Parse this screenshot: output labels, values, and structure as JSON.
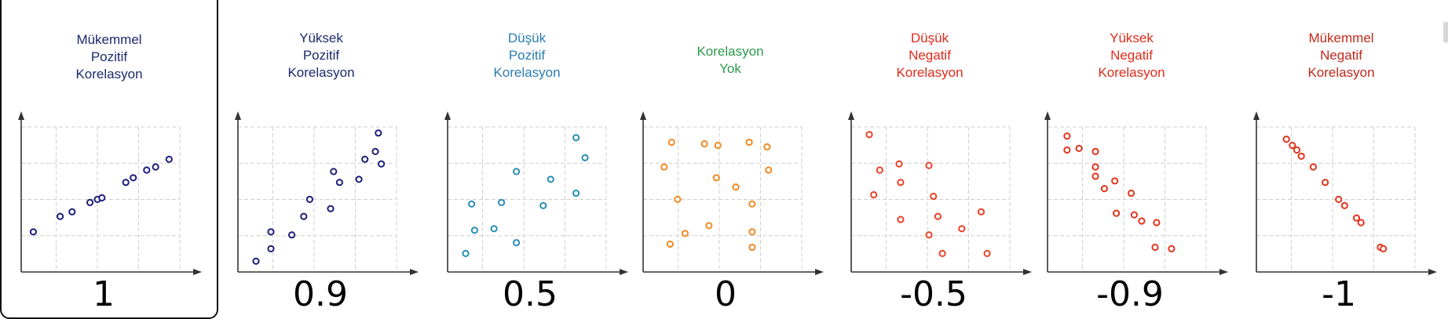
{
  "chart_data": [
    {
      "type": "scatter",
      "title": [
        "Mükemmel",
        "Pozitif",
        "Korelasyon"
      ],
      "coefficient": "1",
      "color": "#1f1f7a",
      "title_color": "#1a2a6c",
      "points": [
        [
          0.06,
          0.26
        ],
        [
          0.24,
          0.36
        ],
        [
          0.32,
          0.39
        ],
        [
          0.44,
          0.45
        ],
        [
          0.49,
          0.47
        ],
        [
          0.52,
          0.48
        ],
        [
          0.68,
          0.58
        ],
        [
          0.73,
          0.61
        ],
        [
          0.82,
          0.66
        ],
        [
          0.88,
          0.68
        ],
        [
          0.97,
          0.73
        ]
      ]
    },
    {
      "type": "scatter",
      "title": [
        "Yüksek",
        "Pozitif",
        "Korelasyon"
      ],
      "coefficient": "0.9",
      "color": "#1f1f7a",
      "title_color": "#1a2a6c",
      "points": [
        [
          0.1,
          0.07
        ],
        [
          0.2,
          0.26
        ],
        [
          0.2,
          0.15
        ],
        [
          0.34,
          0.24
        ],
        [
          0.42,
          0.36
        ],
        [
          0.46,
          0.47
        ],
        [
          0.6,
          0.41
        ],
        [
          0.62,
          0.65
        ],
        [
          0.66,
          0.58
        ],
        [
          0.79,
          0.6
        ],
        [
          0.83,
          0.73
        ],
        [
          0.9,
          0.78
        ],
        [
          0.92,
          0.9
        ],
        [
          0.94,
          0.7
        ]
      ]
    },
    {
      "type": "scatter",
      "title": [
        "Düşük",
        "Pozitif",
        "Korelasyon"
      ],
      "coefficient": "0.5",
      "color": "#2a8fb5",
      "title_color": "#2a7db0",
      "points": [
        [
          0.1,
          0.12
        ],
        [
          0.14,
          0.44
        ],
        [
          0.16,
          0.27
        ],
        [
          0.29,
          0.28
        ],
        [
          0.34,
          0.45
        ],
        [
          0.44,
          0.19
        ],
        [
          0.44,
          0.65
        ],
        [
          0.62,
          0.43
        ],
        [
          0.67,
          0.6
        ],
        [
          0.84,
          0.87
        ],
        [
          0.84,
          0.51
        ],
        [
          0.9,
          0.74
        ]
      ]
    },
    {
      "type": "scatter",
      "title": [
        "Korelasyon",
        "Yok"
      ],
      "coefficient": "0",
      "color": "#f08a24",
      "title_color": "#2a9a4a",
      "points": [
        [
          0.12,
          0.68
        ],
        [
          0.17,
          0.84
        ],
        [
          0.16,
          0.18
        ],
        [
          0.21,
          0.47
        ],
        [
          0.26,
          0.25
        ],
        [
          0.39,
          0.83
        ],
        [
          0.42,
          0.3
        ],
        [
          0.47,
          0.61
        ],
        [
          0.48,
          0.82
        ],
        [
          0.6,
          0.55
        ],
        [
          0.69,
          0.84
        ],
        [
          0.71,
          0.44
        ],
        [
          0.71,
          0.26
        ],
        [
          0.71,
          0.16
        ],
        [
          0.81,
          0.81
        ],
        [
          0.82,
          0.66
        ]
      ]
    },
    {
      "type": "scatter",
      "title": [
        "Düşük",
        "Negatif",
        "Korelasyon"
      ],
      "coefficient": "-0.5",
      "color": "#e8442a",
      "title_color": "#e02a1a",
      "points": [
        [
          0.1,
          0.89
        ],
        [
          0.13,
          0.5
        ],
        [
          0.17,
          0.66
        ],
        [
          0.3,
          0.7
        ],
        [
          0.31,
          0.58
        ],
        [
          0.31,
          0.34
        ],
        [
          0.5,
          0.69
        ],
        [
          0.5,
          0.24
        ],
        [
          0.53,
          0.49
        ],
        [
          0.56,
          0.36
        ],
        [
          0.59,
          0.12
        ],
        [
          0.72,
          0.28
        ],
        [
          0.85,
          0.39
        ],
        [
          0.89,
          0.12
        ]
      ]
    },
    {
      "type": "scatter",
      "title": [
        "Yüksek",
        "Negatif",
        "Korelasyon"
      ],
      "coefficient": "-0.9",
      "color": "#e0361c",
      "title_color": "#e02a1a",
      "points": [
        [
          0.11,
          0.88
        ],
        [
          0.11,
          0.79
        ],
        [
          0.19,
          0.8
        ],
        [
          0.3,
          0.78
        ],
        [
          0.3,
          0.68
        ],
        [
          0.3,
          0.62
        ],
        [
          0.36,
          0.54
        ],
        [
          0.43,
          0.59
        ],
        [
          0.44,
          0.38
        ],
        [
          0.54,
          0.51
        ],
        [
          0.56,
          0.37
        ],
        [
          0.61,
          0.33
        ],
        [
          0.7,
          0.16
        ],
        [
          0.71,
          0.32
        ],
        [
          0.81,
          0.15
        ]
      ]
    },
    {
      "type": "scatter",
      "title": [
        "Mükemmel",
        "Negatif",
        "Korelasyon"
      ],
      "coefficient": "-1",
      "color": "#e0361c",
      "title_color": "#c0281a",
      "points": [
        [
          0.18,
          0.86
        ],
        [
          0.22,
          0.82
        ],
        [
          0.25,
          0.79
        ],
        [
          0.28,
          0.75
        ],
        [
          0.36,
          0.68
        ],
        [
          0.44,
          0.58
        ],
        [
          0.53,
          0.47
        ],
        [
          0.57,
          0.43
        ],
        [
          0.65,
          0.35
        ],
        [
          0.68,
          0.32
        ],
        [
          0.81,
          0.16
        ],
        [
          0.83,
          0.15
        ]
      ]
    }
  ]
}
